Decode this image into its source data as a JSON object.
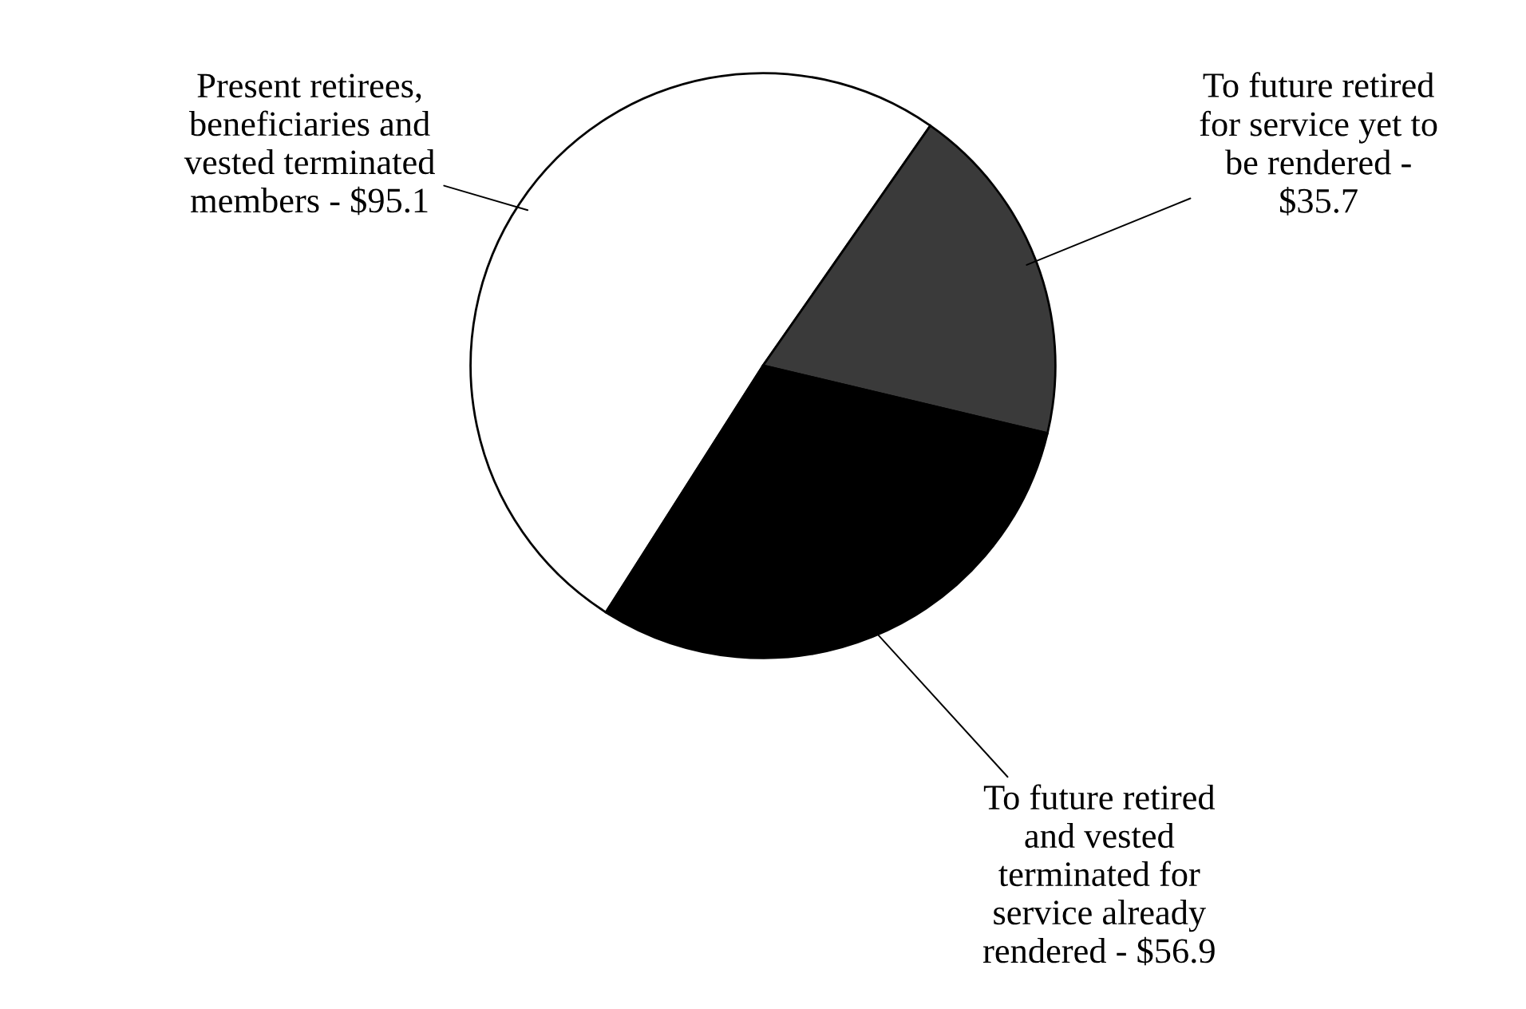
{
  "chart_data": {
    "type": "pie",
    "categories": [
      "Present retirees,\nbeneficiaries and\nvested terminated\nmembers - $95.1",
      "To future retired\nfor service yet to\nbe rendered -\n$35.7",
      "To future retired\nand vested\nterminated for\nservice already\nrendered - $56.9"
    ],
    "values": [
      95.1,
      35.7,
      56.9
    ],
    "colors": [
      "#ffffff",
      "#3a3a3a",
      "#000000"
    ]
  }
}
